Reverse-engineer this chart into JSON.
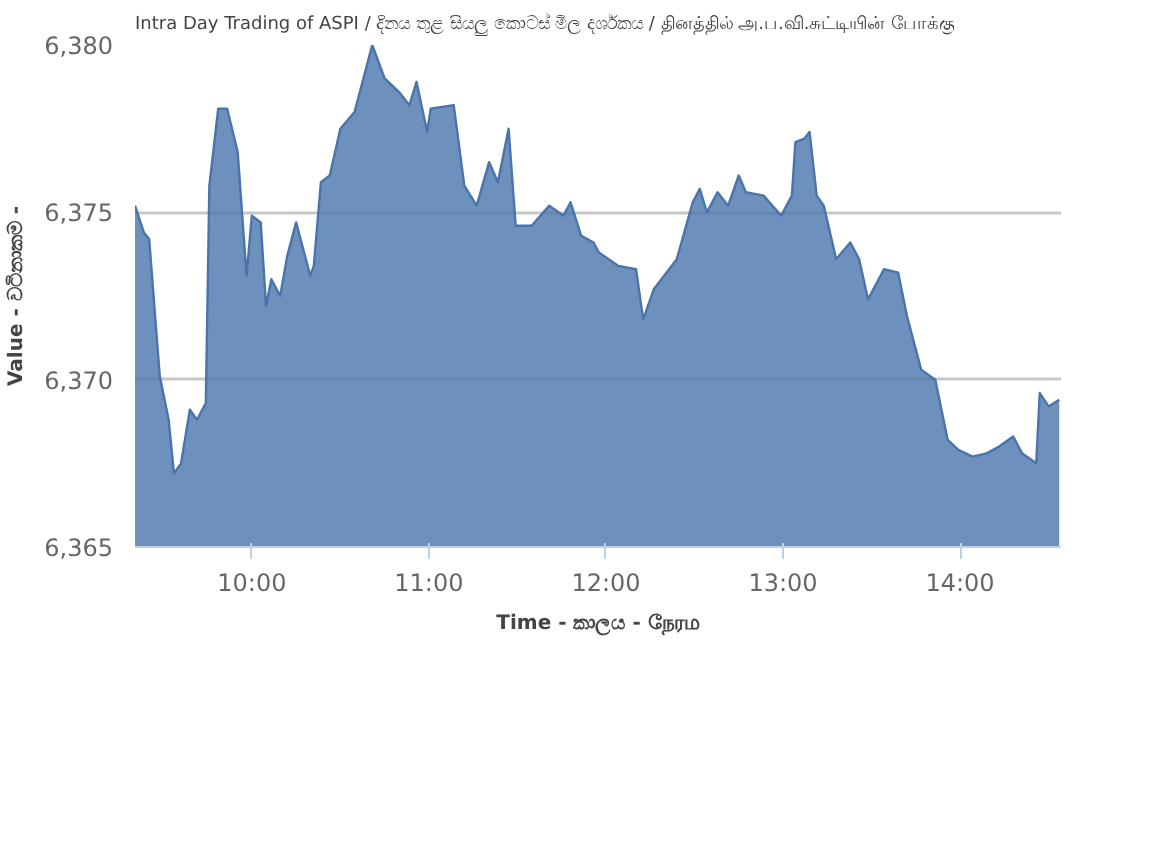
{
  "chart_data": {
    "type": "area",
    "title": "Intra Day Trading of ASPI / දිනය තුළ සියලු කොටස් මිල දර්ශකය  / தினத்தில் அ.ப.வி.சுட்டியின் போக்கு",
    "xlabel": "Time - කාලය - நேரம",
    "ylabel": "Value - වටිනාකම -",
    "x": [
      9.34,
      9.39,
      9.42,
      9.48,
      9.53,
      9.56,
      9.6,
      9.65,
      9.69,
      9.74,
      9.76,
      9.81,
      9.86,
      9.92,
      9.97,
      10.0,
      10.05,
      10.08,
      10.11,
      10.16,
      10.2,
      10.25,
      10.27,
      10.33,
      10.35,
      10.39,
      10.44,
      10.5,
      10.58,
      10.64,
      10.68,
      10.75,
      10.83,
      10.89,
      10.93,
      10.99,
      11.01,
      11.14,
      11.2,
      11.27,
      11.34,
      11.39,
      11.45,
      11.49,
      11.58,
      11.68,
      11.76,
      11.8,
      11.86,
      11.93,
      11.96,
      12.07,
      12.17,
      12.21,
      12.27,
      12.4,
      12.49,
      12.53,
      12.57,
      12.63,
      12.69,
      12.75,
      12.79,
      12.89,
      12.99,
      13.05,
      13.07,
      13.12,
      13.15,
      13.19,
      13.23,
      13.3,
      13.38,
      13.43,
      13.48,
      13.52,
      13.57,
      13.65,
      13.7,
      13.78,
      13.86,
      13.93,
      13.99,
      14.07,
      14.15,
      14.22,
      14.3,
      14.35,
      14.43,
      14.45,
      14.5,
      14.56
    ],
    "series": [
      {
        "color": "#4a74ac",
        "values": [
          6375.2,
          6374.4,
          6374.2,
          6370.1,
          6368.8,
          6367.2,
          6367.5,
          6369.1,
          6368.8,
          6369.3,
          6375.8,
          6378.1,
          6378.1,
          6376.8,
          6373.1,
          6374.9,
          6374.7,
          6372.2,
          6373.0,
          6372.5,
          6373.7,
          6374.7,
          6374.3,
          6373.1,
          6373.4,
          6375.9,
          6376.1,
          6377.5,
          6378.0,
          6379.2,
          6380.0,
          6379.0,
          6378.6,
          6378.2,
          6378.9,
          6377.4,
          6378.1,
          6378.2,
          6375.8,
          6375.2,
          6376.5,
          6375.9,
          6377.5,
          6374.6,
          6374.6,
          6375.2,
          6374.9,
          6375.3,
          6374.3,
          6374.1,
          6373.8,
          6373.4,
          6373.3,
          6371.8,
          6372.7,
          6373.6,
          6375.3,
          6375.7,
          6375.0,
          6375.6,
          6375.2,
          6376.1,
          6375.6,
          6375.5,
          6374.9,
          6375.5,
          6377.1,
          6377.2,
          6377.4,
          6375.5,
          6375.2,
          6373.6,
          6374.1,
          6373.6,
          6372.4,
          6372.8,
          6373.3,
          6373.2,
          6371.9,
          6370.3,
          6370.0,
          6368.2,
          6367.9,
          6367.7,
          6367.8,
          6368.0,
          6368.3,
          6367.8,
          6367.5,
          6369.6,
          6369.2,
          6369.4
        ]
      }
    ],
    "xlim": [
      9.34,
      14.57
    ],
    "ylim": [
      6365,
      6380
    ],
    "xticks": [
      {
        "value": 10,
        "label": "10:00"
      },
      {
        "value": 11,
        "label": "11:00"
      },
      {
        "value": 12,
        "label": "12:00"
      },
      {
        "value": 13,
        "label": "13:00"
      },
      {
        "value": 14,
        "label": "14:00"
      }
    ],
    "yticks": [
      {
        "value": 6365,
        "label": "6,365"
      },
      {
        "value": 6370,
        "label": "6,370"
      },
      {
        "value": 6375,
        "label": "6,375"
      },
      {
        "value": 6380,
        "label": "6,380"
      }
    ],
    "grid": "y"
  }
}
